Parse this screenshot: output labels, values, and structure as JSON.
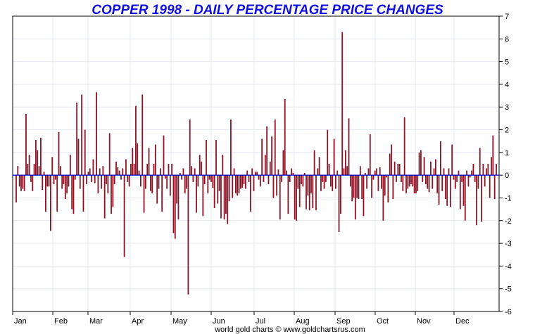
{
  "chart_data": {
    "type": "bar",
    "title": "COPPER 1998 - DAILY PERCENTAGE PRICE CHANGES",
    "xlabel": "",
    "ylabel": "",
    "ylim": [
      -6,
      7
    ],
    "yticks": [
      "-6",
      "-5",
      "-4",
      "-3",
      "-2",
      "-1",
      "0",
      "1",
      "2",
      "3",
      "4",
      "5",
      "6",
      "7"
    ],
    "months": [
      "Jan",
      "Feb",
      "Mar",
      "Apr",
      "May",
      "Jun",
      "Jul",
      "Aug",
      "Sep",
      "Oct",
      "Nov",
      "Dec"
    ],
    "grid": true,
    "legend": "none",
    "footer": "world gold charts © www.goldchartsrus.com",
    "values": [
      -1.2,
      0.4,
      -0.5,
      -0.7,
      -0.6,
      -0.7,
      2.7,
      0.5,
      0.9,
      -0.3,
      -0.7,
      0.5,
      1.55,
      1.1,
      0.4,
      1.65,
      -0.65,
      0.15,
      -1.6,
      -0.5,
      -0.5,
      -2.45,
      0.8,
      -0.4,
      -0.2,
      -1.6,
      1.9,
      0.4,
      -0.6,
      -0.4,
      -1.05,
      -0.8,
      -0.5,
      0.9,
      -1.5,
      -1.7,
      -0.2,
      3.2,
      1.6,
      -0.6,
      3.55,
      -1.6,
      2.0,
      -0.4,
      0.15,
      0.3,
      -0.3,
      0.7,
      -0.35,
      3.65,
      -0.8,
      0.3,
      -0.6,
      0.4,
      -1.9,
      -0.4,
      -0.8,
      1.85,
      -1.7,
      -1.4,
      -0.4,
      0.6,
      0.35,
      0.2,
      -0.2,
      0.3,
      -3.6,
      0.7,
      -0.3,
      -0.5,
      0.5,
      1.2,
      0.5,
      3.05,
      1.4,
      0.2,
      -0.5,
      3.55,
      -1.65,
      -0.6,
      0.5,
      1.2,
      -0.7,
      -0.8,
      0.5,
      1.35,
      -1.25,
      -0.6,
      0.3,
      -1.6,
      1.75,
      -0.15,
      -0.6,
      0.5,
      -0.9,
      0.5,
      -2.55,
      -2.8,
      -1.25,
      -1.95,
      0.1,
      -0.2,
      0.3,
      -0.8,
      -0.6,
      -5.25,
      2.45,
      0.4,
      -0.3,
      0.3,
      -1.65,
      -0.5,
      0.9,
      0.6,
      -1.8,
      -0.4,
      1.55,
      -0.8,
      -0.2,
      -0.3,
      -0.55,
      -1.45,
      1.55,
      -1.25,
      -0.7,
      -1.9,
      0.9,
      -1.95,
      -1.7,
      -2.15,
      -1.15,
      2.45,
      -1.0,
      0.3,
      -0.8,
      -0.9,
      -0.8,
      -0.6,
      -0.55,
      -0.4,
      -0.6,
      0.2,
      -0.3,
      -1.6,
      0.3,
      -0.7,
      0.15,
      0.15,
      -0.2,
      -0.5,
      1.6,
      -0.3,
      0.9,
      2.15,
      -0.4,
      0.6,
      1.7,
      -1.0,
      2.45,
      -0.9,
      0.25,
      -1.95,
      -0.3,
      1.1,
      3.35,
      0.2,
      -1.7,
      -0.3,
      0.3,
      0.1,
      -1.95,
      -2.0,
      -0.6,
      -1.4,
      -0.4,
      -0.5,
      0.1,
      -1.5,
      -0.9,
      -1.55,
      -0.8,
      -1.45,
      1.1,
      -1.55,
      0.3,
      0.8,
      -0.7,
      -0.3,
      -0.6,
      -0.3,
      2.0,
      0.5,
      -0.5,
      -0.7,
      1.6,
      -0.6,
      0.2,
      -2.5,
      -1.7,
      6.3,
      0.3,
      1.1,
      0.4,
      2.5,
      -0.5,
      -1.15,
      -1.0,
      -1.95,
      -1.0,
      -1.05,
      0.4,
      -1.05,
      -1.8,
      0.1,
      -0.6,
      0.3,
      1.8,
      -1.0,
      -0.2,
      0.2,
      0.3,
      -0.7,
      0.35,
      -0.6,
      -2.0,
      -0.9,
      -0.1,
      -1.2,
      0.95,
      1.35,
      -1.05,
      0.6,
      -0.3,
      0.5,
      0.5,
      -0.3,
      -0.7,
      2.55,
      -0.8,
      -0.6,
      -0.5,
      -0.4,
      -0.5,
      -0.8,
      -0.8,
      -0.7,
      1.0,
      1.1,
      -0.3,
      0.8,
      -0.4,
      -0.6,
      -0.75,
      0.6,
      -0.6,
      0.3,
      0.7,
      -0.8,
      -1.3,
      1.5,
      -0.7,
      0.3,
      -1.05,
      -1.35,
      0.3,
      -1.4,
      1.35,
      -0.2,
      -0.6,
      -0.3,
      0.2,
      -1.5,
      -0.3,
      -1.35,
      -2.0,
      0.2,
      -0.5,
      -0.1,
      0.2,
      0.5,
      -0.3,
      -2.2,
      -0.6,
      1.2,
      -2.05,
      0.5,
      -0.5,
      0.3,
      0.5,
      -1.0,
      0.8,
      1.75,
      -1.05,
      0.5
    ]
  }
}
